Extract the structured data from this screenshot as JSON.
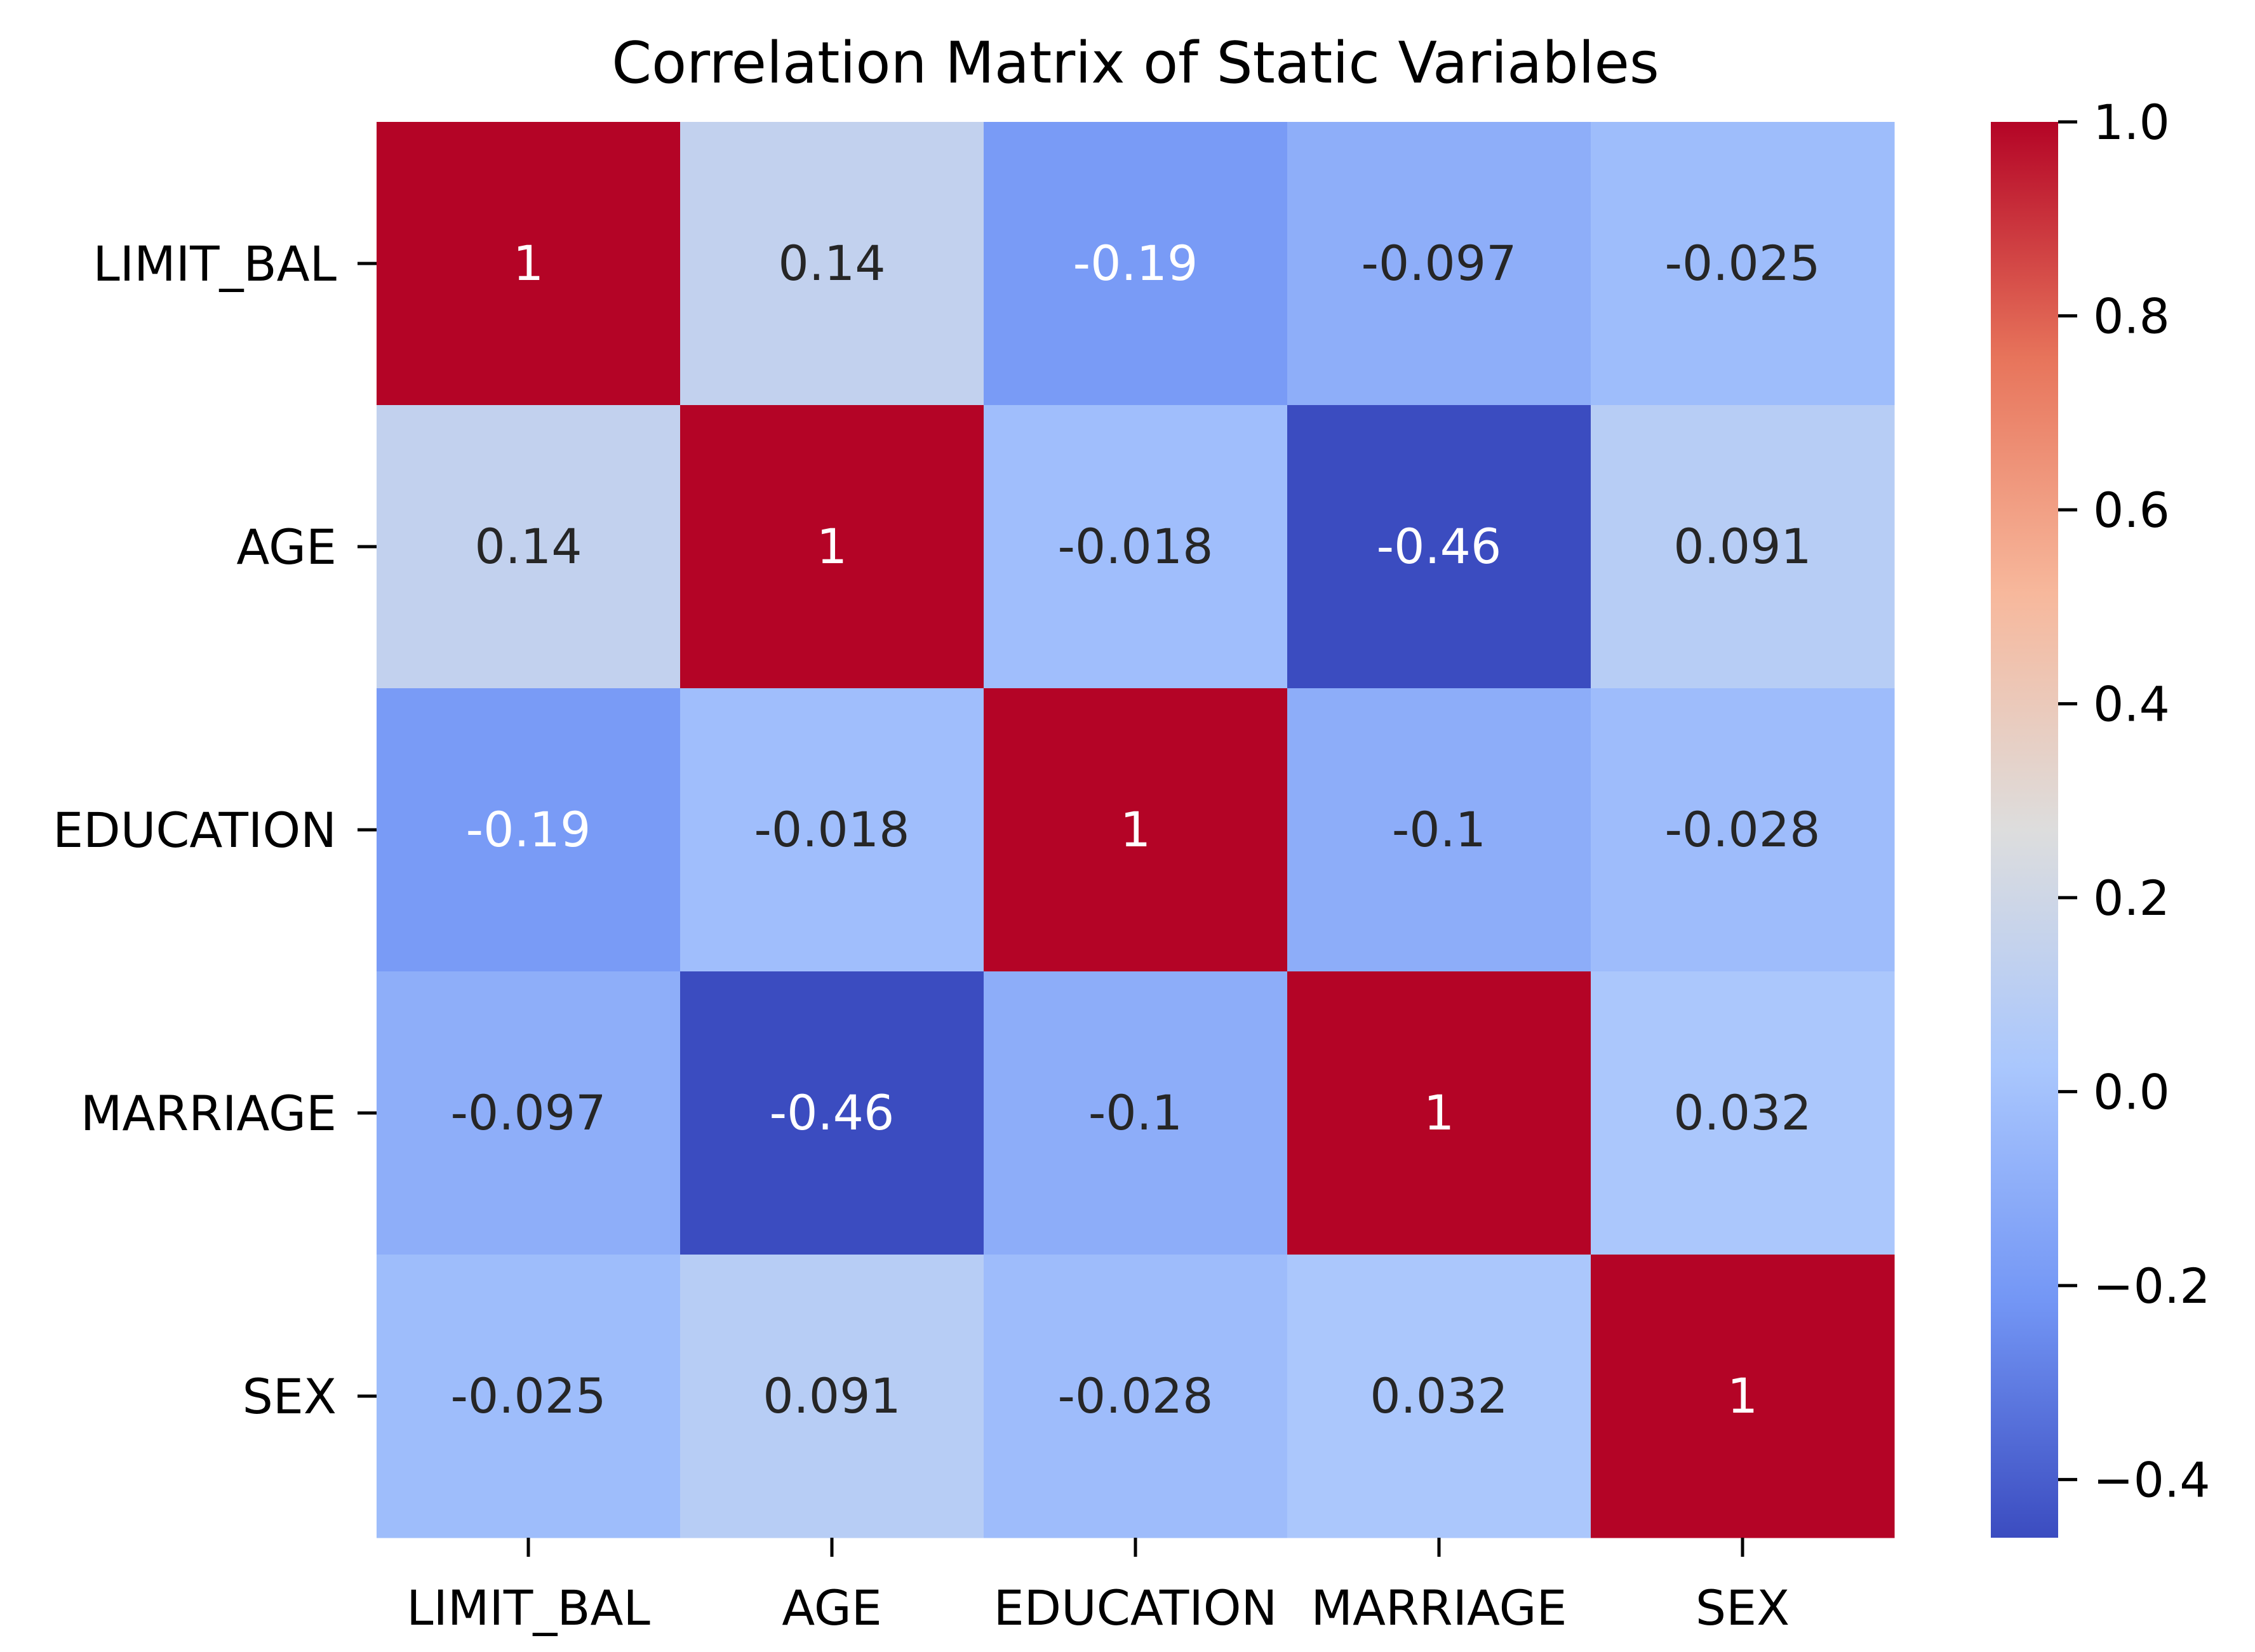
{
  "chart_data": {
    "type": "heatmap",
    "title": "Correlation Matrix of Static Variables",
    "row_labels": [
      "LIMIT_BAL",
      "AGE",
      "EDUCATION",
      "MARRIAGE",
      "SEX"
    ],
    "col_labels": [
      "LIMIT_BAL",
      "AGE",
      "EDUCATION",
      "MARRIAGE",
      "SEX"
    ],
    "values": [
      [
        1,
        0.14,
        -0.19,
        -0.097,
        -0.025
      ],
      [
        0.14,
        1,
        -0.018,
        -0.46,
        0.091
      ],
      [
        -0.19,
        -0.018,
        1,
        -0.1,
        -0.028
      ],
      [
        -0.097,
        -0.46,
        -0.1,
        1,
        0.032
      ],
      [
        -0.025,
        0.091,
        -0.028,
        0.032,
        1
      ]
    ],
    "cell_text": [
      [
        "1",
        "0.14",
        "-0.19",
        "-0.097",
        "-0.025"
      ],
      [
        "0.14",
        "1",
        "-0.018",
        "-0.46",
        "0.091"
      ],
      [
        "-0.19",
        "-0.018",
        "1",
        "-0.1",
        "-0.028"
      ],
      [
        "-0.097",
        "-0.46",
        "-0.1",
        "1",
        "0.032"
      ],
      [
        "-0.025",
        "0.091",
        "-0.028",
        "0.032",
        "1"
      ]
    ],
    "colormap": "coolwarm",
    "colormap_stops": [
      "#3b4cc0",
      "#7396f5",
      "#aac7fd",
      "#dddddd",
      "#f7b89c",
      "#e7745b",
      "#b40426"
    ],
    "vmin": -0.46,
    "vmax": 1.0,
    "colorbar_ticks": [
      1.0,
      0.8,
      0.6,
      0.4,
      0.2,
      0.0,
      -0.2,
      -0.4
    ],
    "colorbar_tick_labels": [
      "1.0",
      "0.8",
      "0.6",
      "0.4",
      "0.2",
      "0.0",
      "−0.2",
      "−0.4"
    ],
    "colors": {
      "dark_text": "#262626",
      "light_text": "#ffffff"
    }
  }
}
